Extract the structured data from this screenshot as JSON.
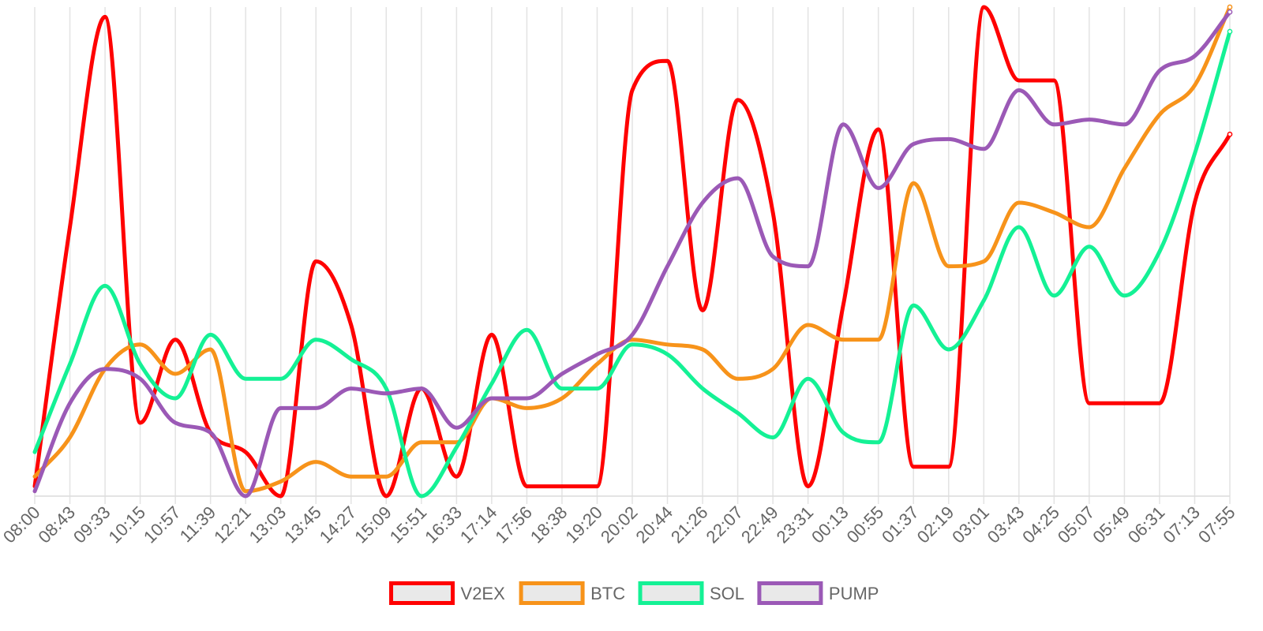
{
  "chart_data": {
    "type": "line",
    "title": "",
    "xlabel": "",
    "ylabel": "",
    "grid": "vertical",
    "legend_position": "bottom-center",
    "ylim": [
      0,
      100
    ],
    "categories": [
      "08:00",
      "08:43",
      "09:33",
      "10:15",
      "10:57",
      "11:39",
      "12:21",
      "13:03",
      "13:45",
      "14:27",
      "15:09",
      "15:51",
      "16:33",
      "17:14",
      "17:56",
      "18:38",
      "19:20",
      "20:02",
      "20:44",
      "21:26",
      "22:07",
      "22:49",
      "23:31",
      "00:13",
      "00:55",
      "01:37",
      "02:19",
      "03:01",
      "03:43",
      "04:25",
      "05:07",
      "05:49",
      "06:31",
      "07:13",
      "07:55"
    ],
    "series": [
      {
        "name": "V2EX",
        "color": "#ff0000",
        "values": [
          2,
          55,
          98,
          15,
          32,
          13,
          9,
          0,
          48,
          35,
          0,
          22,
          4,
          33,
          2,
          2,
          2,
          83,
          89,
          38,
          81,
          58,
          2,
          39,
          75,
          6,
          6,
          100,
          85,
          85,
          19,
          19,
          19,
          60,
          74
        ]
      },
      {
        "name": "BTC",
        "color": "#f7931a",
        "values": [
          4,
          12,
          26,
          31,
          25,
          30,
          1,
          3,
          7,
          4,
          4,
          11,
          11,
          20,
          18,
          20,
          27,
          32,
          31,
          30,
          24,
          26,
          35,
          32,
          32,
          64,
          47,
          48,
          60,
          58,
          55,
          67,
          78,
          84,
          100
        ]
      },
      {
        "name": "SOL",
        "color": "#14f195",
        "values": [
          9,
          27,
          43,
          27,
          20,
          33,
          24,
          24,
          32,
          28,
          22,
          0,
          10,
          23,
          34,
          22,
          22,
          31,
          29,
          22,
          17,
          12,
          24,
          13,
          11,
          39,
          30,
          40,
          55,
          41,
          51,
          41,
          50,
          70,
          95
        ]
      },
      {
        "name": "PUMP",
        "color": "#9b59b6",
        "values": [
          1,
          19,
          26,
          24,
          15,
          13,
          0,
          18,
          18,
          22,
          21,
          22,
          14,
          20,
          20,
          25,
          29,
          33,
          47,
          60,
          65,
          49,
          47,
          76,
          63,
          72,
          73,
          71,
          83,
          76,
          77,
          76,
          87,
          90,
          99
        ]
      }
    ]
  }
}
